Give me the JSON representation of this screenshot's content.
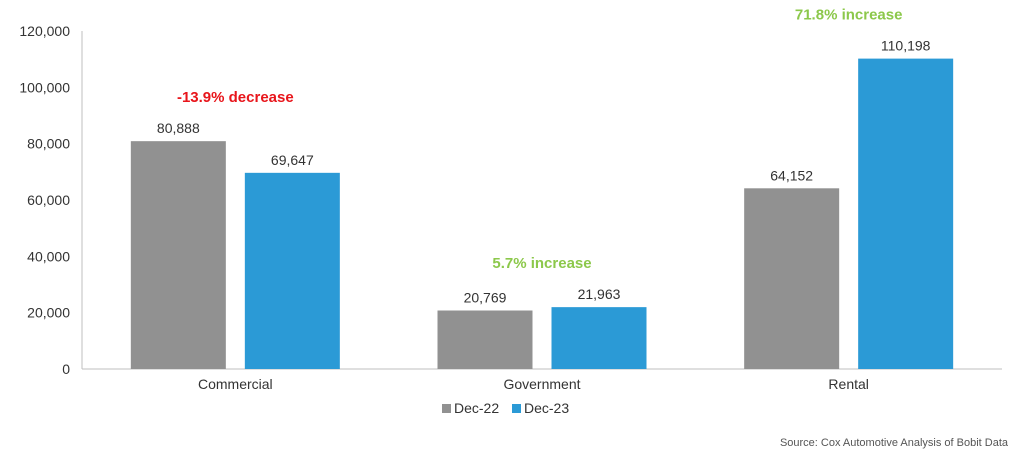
{
  "chart_data": {
    "type": "bar",
    "categories": [
      "Commercial",
      "Government",
      "Rental"
    ],
    "series": [
      {
        "name": "Dec-22",
        "values": [
          80888,
          20769,
          64152
        ],
        "labels": [
          "80,888",
          "20,769",
          "64,152"
        ],
        "color": "#919191"
      },
      {
        "name": "Dec-23",
        "values": [
          69647,
          21963,
          110198
        ],
        "labels": [
          "69,647",
          "21,963",
          "110,198"
        ],
        "color": "#2B9AD6"
      }
    ],
    "ylim": [
      0,
      120000
    ],
    "yticks": [
      0,
      20000,
      40000,
      60000,
      80000,
      100000,
      120000
    ],
    "ytick_labels": [
      "0",
      "20,000",
      "40,000",
      "60,000",
      "80,000",
      "100,000",
      "120,000"
    ],
    "grid": false,
    "legend_position": "bottom",
    "annotations": [
      {
        "category": "Commercial",
        "text": "-13.9% decrease",
        "color": "#E8151B"
      },
      {
        "category": "Government",
        "text": "5.7% increase",
        "color": "#8CC84B"
      },
      {
        "category": "Rental",
        "text": "71.8% increase",
        "color": "#8CC84B"
      }
    ],
    "source": "Source: Cox Automotive Analysis of Bobit Data"
  }
}
